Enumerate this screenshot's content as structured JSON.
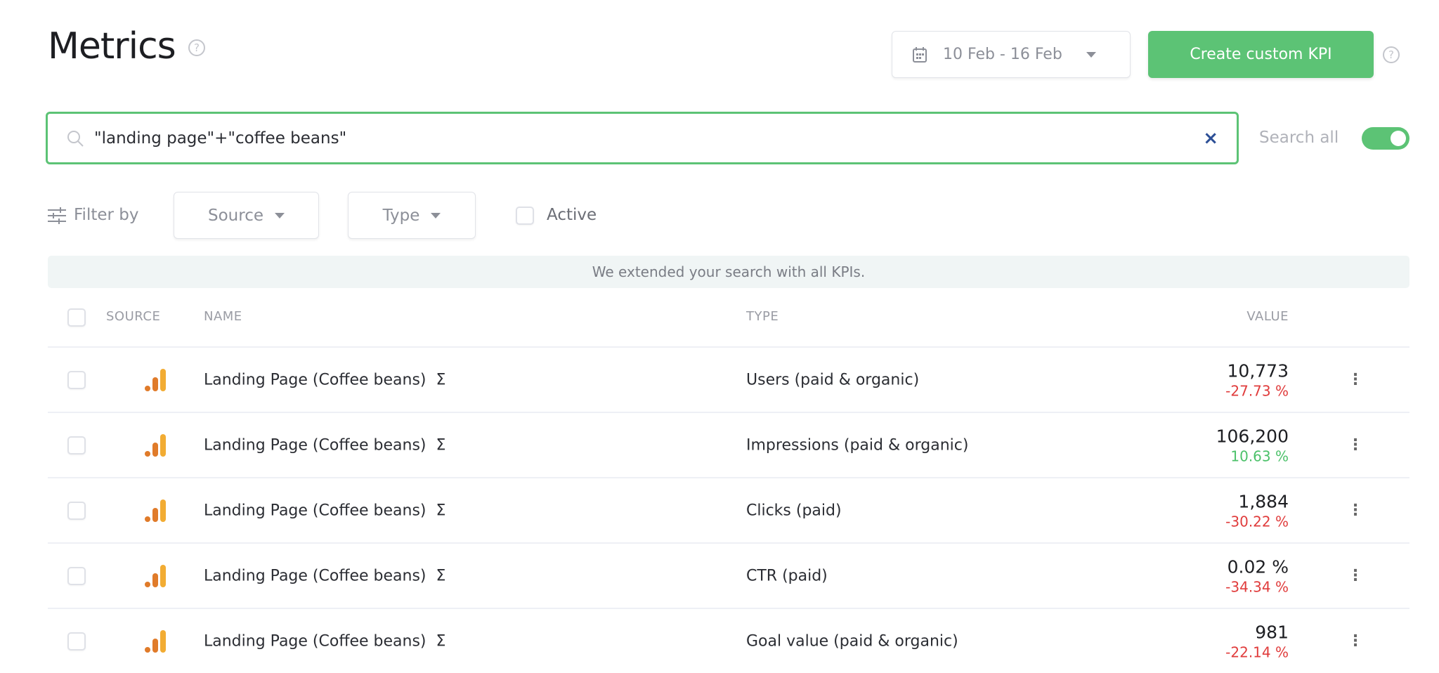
{
  "header": {
    "title": "Metrics",
    "date_range": "10 Feb - 16 Feb",
    "create_label": "Create custom KPI"
  },
  "search": {
    "value": "\"landing page\"+\"coffee beans\"",
    "search_all_label": "Search all",
    "search_all_on": true
  },
  "filters": {
    "label": "Filter by",
    "source": "Source",
    "type": "Type",
    "active": "Active"
  },
  "banner": "We extended your search with all KPIs.",
  "table": {
    "columns": {
      "source": "SOURCE",
      "name": "NAME",
      "type": "TYPE",
      "value": "VALUE"
    },
    "rows": [
      {
        "name": "Landing Page (Coffee beans)",
        "type": "Users (paid & organic)",
        "value": "10,773",
        "change": "-27.73 %",
        "trend": "down"
      },
      {
        "name": "Landing Page (Coffee beans)",
        "type": "Impressions (paid & organic)",
        "value": "106,200",
        "change": "10.63 %",
        "trend": "up"
      },
      {
        "name": "Landing Page (Coffee beans)",
        "type": "Clicks (paid)",
        "value": "1,884",
        "change": "-30.22 %",
        "trend": "down"
      },
      {
        "name": "Landing Page (Coffee beans)",
        "type": "CTR (paid)",
        "value": "0.02 %",
        "change": "-34.34 %",
        "trend": "down"
      },
      {
        "name": "Landing Page (Coffee beans)",
        "type": "Goal value (paid & organic)",
        "value": "981",
        "change": "-22.14 %",
        "trend": "down"
      }
    ]
  },
  "colors": {
    "accent": "#5cc375",
    "negative": "#e03c3c",
    "positive": "#4cc16a",
    "source_icon": [
      "#e07b2a",
      "#f2ac33"
    ]
  },
  "icons": {
    "sum": "Σ",
    "help": "?",
    "clear": "×"
  }
}
